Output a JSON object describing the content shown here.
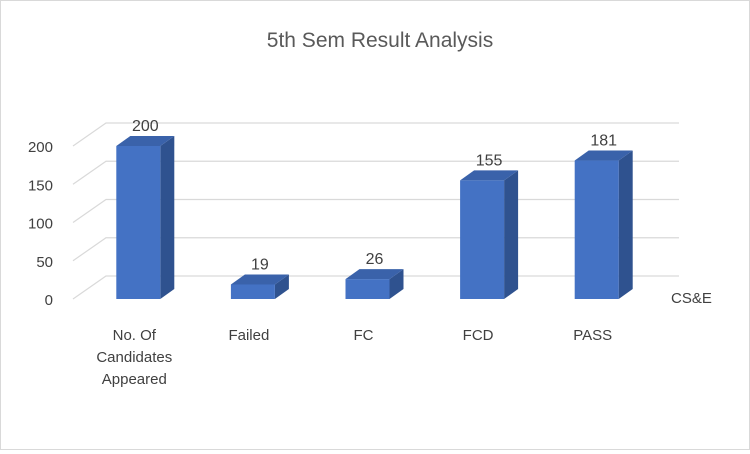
{
  "chart_data": {
    "type": "bar",
    "title": "5th Sem Result Analysis",
    "categories": [
      "No. Of Candidates Appeared",
      "Failed",
      "FC",
      "FCD",
      "PASS"
    ],
    "category_lines": [
      [
        "No. Of",
        "Candidates",
        "Appeared"
      ],
      [
        "Failed"
      ],
      [
        "FC"
      ],
      [
        "FCD"
      ],
      [
        "PASS"
      ]
    ],
    "series": [
      {
        "name": "CS&E",
        "values": [
          200,
          19,
          26,
          155,
          181
        ]
      }
    ],
    "data_labels": [
      "200",
      "19",
      "26",
      "155",
      "181"
    ],
    "y_ticks": [
      0,
      50,
      100,
      150,
      200
    ],
    "y_tick_labels": [
      "0",
      "50",
      "100",
      "150",
      "200"
    ],
    "ylim": [
      0,
      200
    ],
    "xlabel": "",
    "ylabel": "",
    "grid": true,
    "style": "3d-column",
    "legend_position": "right",
    "colors": {
      "bar_front": "#4472C4",
      "bar_side": "#2F528F",
      "bar_top": "#3A62AA",
      "grid": "#d9d9d9",
      "text": "#404040",
      "title": "#595959"
    }
  }
}
